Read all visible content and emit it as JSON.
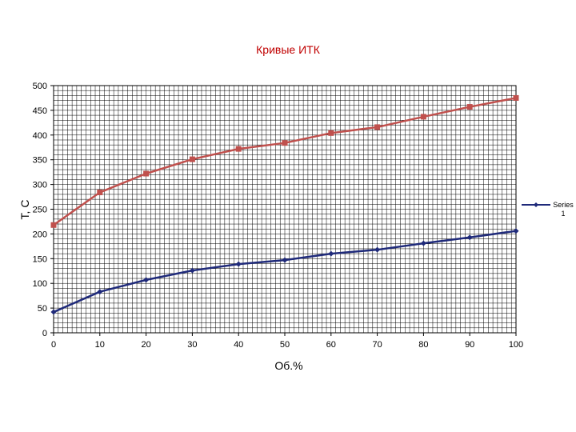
{
  "chart_data": {
    "type": "line",
    "title": "Кривые ИТК",
    "xlabel": "Об.%",
    "ylabel": "T, C",
    "xlim": [
      0,
      100
    ],
    "ylim": [
      0,
      500
    ],
    "x_ticks": [
      0,
      10,
      20,
      30,
      40,
      50,
      60,
      70,
      80,
      90,
      100
    ],
    "y_ticks": [
      0,
      50,
      100,
      150,
      200,
      250,
      300,
      350,
      400,
      450,
      500
    ],
    "grid": true,
    "legend_position": "right",
    "series": [
      {
        "name": "Series 1",
        "color": "#1f2a7a",
        "marker": "diamond",
        "x": [
          0,
          10,
          20,
          30,
          40,
          50,
          60,
          70,
          80,
          90,
          100
        ],
        "y": [
          42,
          83,
          107,
          126,
          139,
          147,
          160,
          168,
          181,
          193,
          206
        ]
      },
      {
        "color": "#c0504d",
        "marker": "square",
        "x": [
          0,
          10,
          20,
          30,
          40,
          50,
          60,
          70,
          80,
          90,
          100
        ],
        "y": [
          218,
          284,
          322,
          351,
          372,
          384,
          404,
          416,
          437,
          457,
          475
        ]
      }
    ]
  }
}
